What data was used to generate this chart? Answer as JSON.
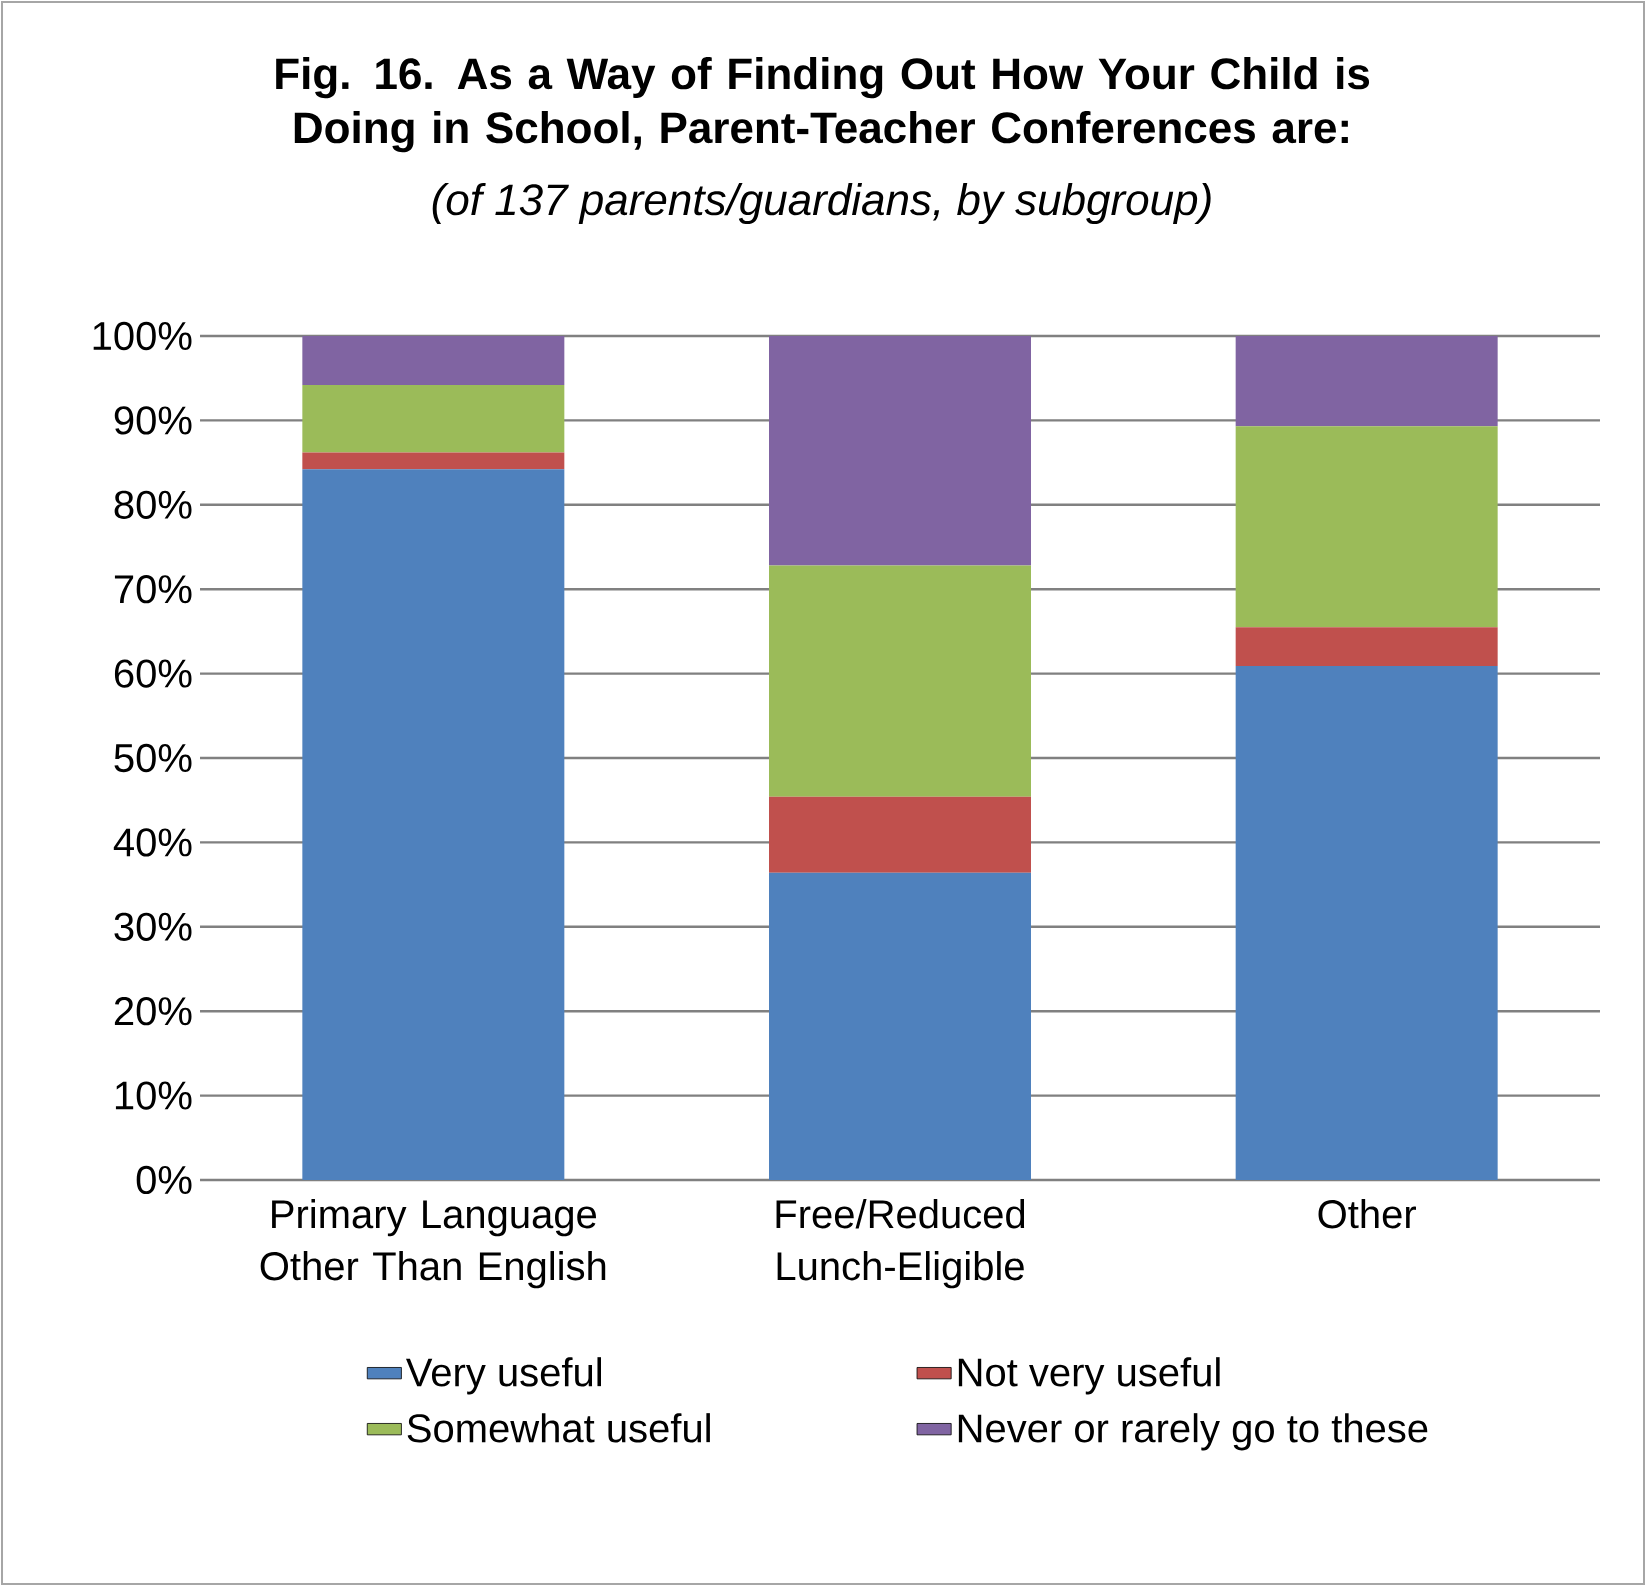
{
  "chart_data": {
    "type": "bar",
    "stacked": true,
    "title": "Fig. 16. As a Way of Finding Out How Your Child is Doing in School, Parent-Teacher Conferences are:",
    "subtitle": "(of 137 parents/guardians, by subgroup)",
    "categories": [
      "Primary Language Other Than English",
      "Free/Reduced Lunch-Eligible",
      "Other"
    ],
    "series": [
      {
        "name": "Very useful",
        "color": "#4f81bd",
        "values": [
          84.2,
          36.4,
          60.9
        ]
      },
      {
        "name": "Not very useful",
        "color": "#c0504d",
        "values": [
          2.0,
          9.0,
          4.6
        ]
      },
      {
        "name": "Somewhat useful",
        "color": "#9bbb59",
        "values": [
          8.0,
          27.4,
          23.8
        ]
      },
      {
        "name": "Never or rarely go to these",
        "color": "#8064a2",
        "values": [
          5.8,
          27.2,
          10.7
        ]
      }
    ],
    "ylim": [
      0,
      100
    ],
    "yticks": [
      {
        "value": 0,
        "label": "0%"
      },
      {
        "value": 10,
        "label": "10%"
      },
      {
        "value": 20,
        "label": "20%"
      },
      {
        "value": 30,
        "label": "30%"
      },
      {
        "value": 40,
        "label": "40%"
      },
      {
        "value": 50,
        "label": "50%"
      },
      {
        "value": 60,
        "label": "60%"
      },
      {
        "value": 70,
        "label": "70%"
      },
      {
        "value": 80,
        "label": "80%"
      },
      {
        "value": 90,
        "label": "90%"
      },
      {
        "value": 100,
        "label": "100%"
      }
    ],
    "grid": "y",
    "legend": "bottom"
  }
}
